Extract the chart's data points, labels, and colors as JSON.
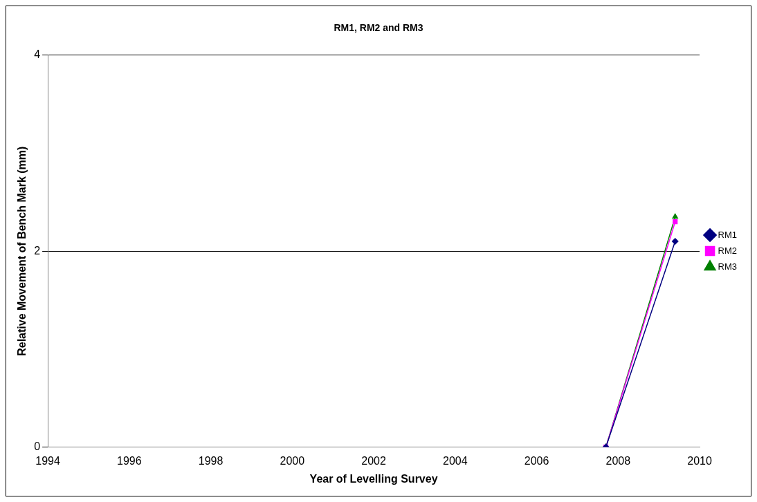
{
  "chart_data": {
    "type": "line",
    "title": "RM1, RM2 and RM3",
    "xlabel": "Year of Levelling Survey",
    "ylabel": "Relative Movement of Bench Mark (mm)",
    "x": [
      2007.7,
      2009.4
    ],
    "series": [
      {
        "name": "RM1",
        "color": "#000080",
        "values": [
          0,
          2.1
        ],
        "marker": "diamond"
      },
      {
        "name": "RM2",
        "color": "#ff00ff",
        "values": [
          0,
          2.3
        ],
        "marker": "square"
      },
      {
        "name": "RM3",
        "color": "#008000",
        "values": [
          0,
          2.35
        ],
        "marker": "triangle"
      }
    ],
    "xlim": [
      1994,
      2010
    ],
    "xticks": [
      1994,
      1996,
      1998,
      2000,
      2002,
      2004,
      2006,
      2008,
      2010
    ],
    "ylim": [
      0,
      4
    ],
    "yticks": [
      0,
      2,
      4
    ],
    "grid": "y",
    "legend": "right",
    "line_style": "solid"
  }
}
